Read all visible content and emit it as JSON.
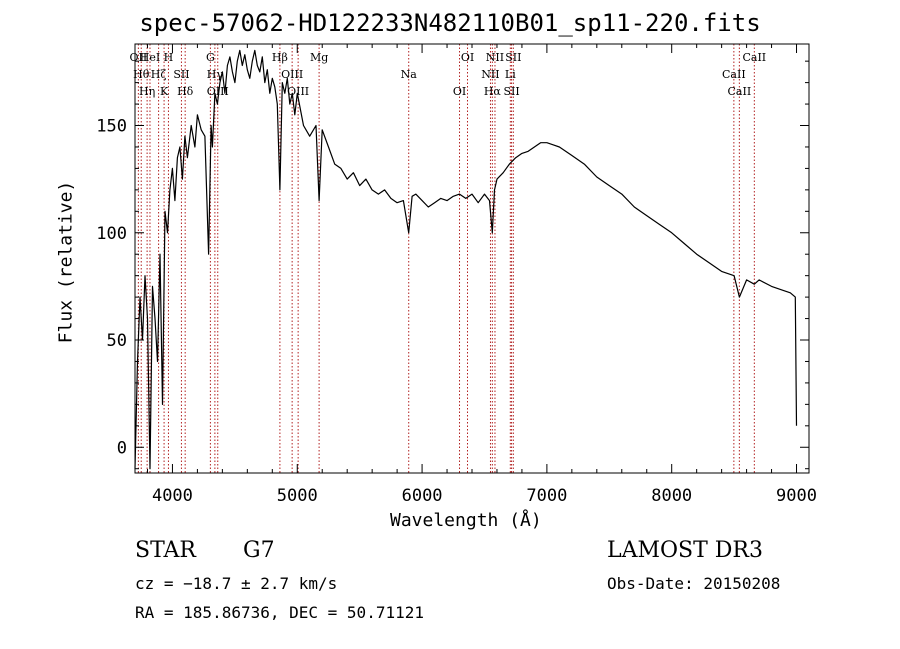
{
  "chart_data": {
    "type": "line",
    "title": "spec-57062-HD122233N482110B01_sp11-220.fits",
    "xlabel": "Wavelength (Å)",
    "ylabel": "Flux (relative)",
    "xlim": [
      3700,
      9100
    ],
    "ylim": [
      -12,
      188
    ],
    "xticks": [
      4000,
      5000,
      6000,
      7000,
      8000,
      9000
    ],
    "yticks": [
      0,
      50,
      100,
      150
    ],
    "series": [
      {
        "name": "Flux",
        "x": [
          3700,
          3720,
          3740,
          3760,
          3780,
          3800,
          3820,
          3840,
          3860,
          3880,
          3900,
          3920,
          3940,
          3960,
          3980,
          4000,
          4020,
          4040,
          4060,
          4080,
          4100,
          4120,
          4150,
          4180,
          4200,
          4230,
          4260,
          4290,
          4310,
          4320,
          4340,
          4360,
          4380,
          4400,
          4420,
          4440,
          4460,
          4480,
          4500,
          4520,
          4540,
          4560,
          4580,
          4600,
          4620,
          4640,
          4660,
          4680,
          4700,
          4720,
          4740,
          4760,
          4780,
          4800,
          4820,
          4840,
          4861,
          4880,
          4900,
          4920,
          4940,
          4960,
          4980,
          5000,
          5050,
          5100,
          5150,
          5175,
          5200,
          5250,
          5300,
          5350,
          5400,
          5450,
          5500,
          5550,
          5600,
          5650,
          5700,
          5750,
          5800,
          5850,
          5893,
          5920,
          5950,
          6000,
          6050,
          6100,
          6150,
          6200,
          6250,
          6300,
          6350,
          6400,
          6450,
          6500,
          6540,
          6563,
          6580,
          6600,
          6650,
          6700,
          6750,
          6800,
          6850,
          6900,
          6950,
          7000,
          7050,
          7100,
          7200,
          7300,
          7400,
          7500,
          7600,
          7700,
          7800,
          7900,
          8000,
          8100,
          8200,
          8300,
          8400,
          8500,
          8542,
          8600,
          8662,
          8700,
          8800,
          8900,
          8950,
          8990,
          9000
        ],
        "values": [
          -10,
          40,
          70,
          50,
          80,
          60,
          -10,
          75,
          60,
          40,
          90,
          20,
          110,
          100,
          120,
          130,
          115,
          135,
          140,
          125,
          145,
          135,
          150,
          140,
          155,
          148,
          145,
          90,
          150,
          140,
          165,
          160,
          170,
          175,
          165,
          178,
          182,
          175,
          170,
          180,
          185,
          178,
          183,
          176,
          172,
          180,
          185,
          178,
          175,
          182,
          170,
          176,
          165,
          172,
          168,
          160,
          120,
          170,
          165,
          172,
          160,
          165,
          155,
          165,
          150,
          145,
          150,
          115,
          148,
          140,
          132,
          130,
          125,
          128,
          122,
          125,
          120,
          118,
          120,
          116,
          114,
          115,
          100,
          117,
          118,
          115,
          112,
          114,
          116,
          115,
          117,
          118,
          116,
          118,
          114,
          118,
          115,
          100,
          120,
          125,
          128,
          132,
          135,
          137,
          138,
          140,
          142,
          142,
          141,
          140,
          136,
          132,
          126,
          122,
          118,
          112,
          108,
          104,
          100,
          95,
          90,
          86,
          82,
          80,
          70,
          78,
          76,
          78,
          75,
          73,
          72,
          70,
          10
        ]
      }
    ],
    "lines": [
      {
        "wavelength": 3727,
        "labels": [
          "OII"
        ]
      },
      {
        "wavelength": 3750,
        "labels": [
          "Hθ"
        ]
      },
      {
        "wavelength": 3797,
        "labels": [
          "Hη"
        ]
      },
      {
        "wavelength": 3820,
        "labels": [
          "HeI"
        ]
      },
      {
        "wavelength": 3889,
        "labels": [
          "Hζ"
        ]
      },
      {
        "wavelength": 3933,
        "labels": [
          "K"
        ]
      },
      {
        "wavelength": 3968,
        "labels": [
          "H"
        ]
      },
      {
        "wavelength": 4072,
        "labels": [
          "SII"
        ]
      },
      {
        "wavelength": 4102,
        "labels": [
          "Hδ"
        ]
      },
      {
        "wavelength": 4304,
        "labels": [
          "G"
        ]
      },
      {
        "wavelength": 4340,
        "labels": [
          "Hγ"
        ]
      },
      {
        "wavelength": 4363,
        "labels": [
          "OIII"
        ]
      },
      {
        "wavelength": 4861,
        "labels": [
          "Hβ"
        ]
      },
      {
        "wavelength": 4959,
        "labels": [
          "OIII"
        ]
      },
      {
        "wavelength": 5007,
        "labels": [
          "OIII"
        ]
      },
      {
        "wavelength": 5175,
        "labels": [
          "Mg"
        ]
      },
      {
        "wavelength": 5893,
        "labels": [
          "Na"
        ]
      },
      {
        "wavelength": 6300,
        "labels": [
          "OI"
        ]
      },
      {
        "wavelength": 6364,
        "labels": [
          "OI"
        ]
      },
      {
        "wavelength": 6548,
        "labels": [
          "NII"
        ]
      },
      {
        "wavelength": 6563,
        "labels": [
          "Hα"
        ]
      },
      {
        "wavelength": 6584,
        "labels": [
          "NII"
        ]
      },
      {
        "wavelength": 6707,
        "labels": [
          "Li"
        ]
      },
      {
        "wavelength": 6717,
        "labels": [
          "SII"
        ]
      },
      {
        "wavelength": 6731,
        "labels": [
          "SII"
        ]
      },
      {
        "wavelength": 8498,
        "labels": [
          "CaII"
        ]
      },
      {
        "wavelength": 8542,
        "labels": [
          "CaII"
        ]
      },
      {
        "wavelength": 8662,
        "labels": [
          "CaII"
        ]
      }
    ]
  },
  "info": {
    "class": "STAR",
    "subclass": "G7",
    "cz": "cz = −18.7 ± 2.7 km/s",
    "coords": "RA = 185.86736, DEC =  50.71121",
    "survey": "LAMOST DR3",
    "obs_date": "Obs-Date: 20150208"
  },
  "colors": {
    "axis": "#000000",
    "line_marker": "#b22222"
  }
}
